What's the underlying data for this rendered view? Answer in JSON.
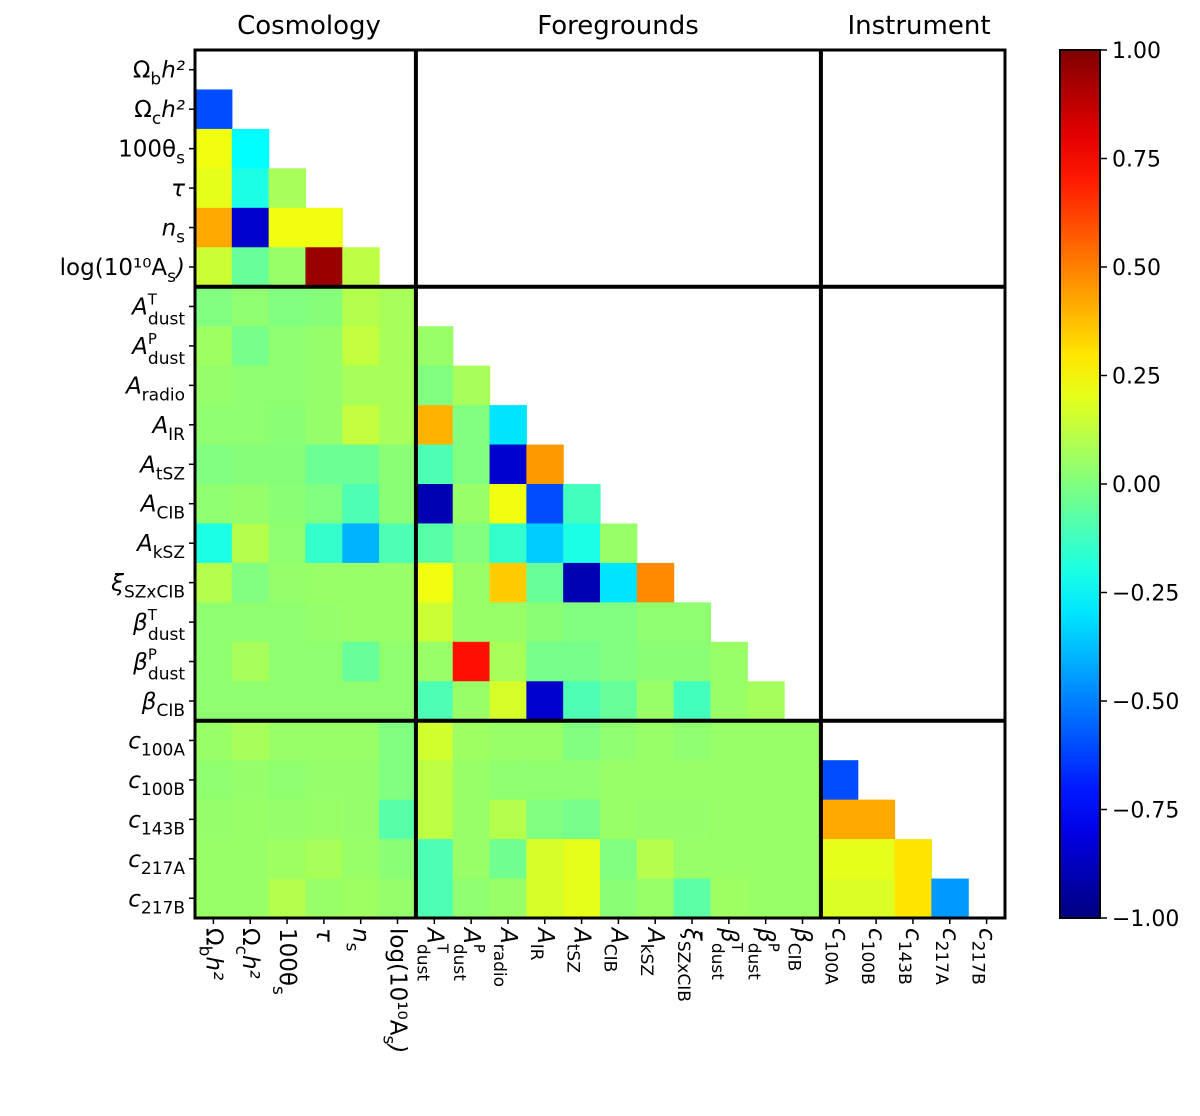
{
  "chart_data": {
    "type": "heatmap",
    "title": "",
    "xlabel": "",
    "ylabel": "",
    "group_titles": [
      "Cosmology",
      "Foregrounds",
      "Instrument"
    ],
    "group_sizes": [
      6,
      11,
      5
    ],
    "labels": [
      {
        "base": "Ω",
        "sub": "b",
        "sup": "",
        "post": "h²",
        "italic_base": false
      },
      {
        "base": "Ω",
        "sub": "c",
        "sup": "",
        "post": "h²",
        "italic_base": false
      },
      {
        "base": "100θ",
        "sub": "s",
        "sup": "",
        "post": "",
        "italic_base": false
      },
      {
        "base": "τ",
        "sub": "",
        "sup": "",
        "post": "",
        "italic_base": true
      },
      {
        "base": "n",
        "sub": "s",
        "sup": "",
        "post": "",
        "italic_base": true
      },
      {
        "base": "log(10¹⁰A",
        "sub": "s",
        "sup": "",
        "post": ")",
        "italic_base": false
      },
      {
        "base": "A",
        "sub": "dust",
        "sup": "T",
        "post": "",
        "italic_base": true
      },
      {
        "base": "A",
        "sub": "dust",
        "sup": "P",
        "post": "",
        "italic_base": true
      },
      {
        "base": "A",
        "sub": "radio",
        "sup": "",
        "post": "",
        "italic_base": true
      },
      {
        "base": "A",
        "sub": "IR",
        "sup": "",
        "post": "",
        "italic_base": true
      },
      {
        "base": "A",
        "sub": "tSZ",
        "sup": "",
        "post": "",
        "italic_base": true
      },
      {
        "base": "A",
        "sub": "CIB",
        "sup": "",
        "post": "",
        "italic_base": true
      },
      {
        "base": "A",
        "sub": "kSZ",
        "sup": "",
        "post": "",
        "italic_base": true
      },
      {
        "base": "ξ",
        "sub": "SZxCIB",
        "sup": "",
        "post": "",
        "italic_base": true
      },
      {
        "base": "β",
        "sub": "dust",
        "sup": "T",
        "post": "",
        "italic_base": true
      },
      {
        "base": "β",
        "sub": "dust",
        "sup": "P",
        "post": "",
        "italic_base": true
      },
      {
        "base": "β",
        "sub": "CIB",
        "sup": "",
        "post": "",
        "italic_base": true
      },
      {
        "base": "c",
        "sub": "100A",
        "sup": "",
        "post": "",
        "italic_base": true
      },
      {
        "base": "c",
        "sub": "100B",
        "sup": "",
        "post": "",
        "italic_base": true
      },
      {
        "base": "c",
        "sub": "143B",
        "sup": "",
        "post": "",
        "italic_base": true
      },
      {
        "base": "c",
        "sub": "217A",
        "sup": "",
        "post": "",
        "italic_base": true
      },
      {
        "base": "c",
        "sub": "217B",
        "sup": "",
        "post": "",
        "italic_base": true
      }
    ],
    "lower_triangle_rows": [
      [],
      [
        -0.6
      ],
      [
        0.22,
        -0.25
      ],
      [
        0.2,
        -0.2,
        0.08
      ],
      [
        0.42,
        -0.85,
        0.22,
        0.22
      ],
      [
        0.15,
        -0.05,
        0.05,
        0.95,
        0.12
      ],
      [
        0.0,
        0.03,
        0.0,
        0.01,
        0.1,
        0.08
      ],
      [
        0.06,
        -0.02,
        0.03,
        0.04,
        0.13,
        0.08,
        0.05
      ],
      [
        0.04,
        0.03,
        0.03,
        0.04,
        0.08,
        0.08,
        0.0,
        0.08
      ],
      [
        0.03,
        0.03,
        0.02,
        0.04,
        0.13,
        0.08,
        0.4,
        0.0,
        -0.3
      ],
      [
        0.0,
        0.01,
        0.01,
        -0.04,
        -0.04,
        0.02,
        -0.1,
        0.0,
        -0.85,
        0.45
      ],
      [
        0.03,
        0.04,
        0.02,
        0.0,
        -0.1,
        0.02,
        -0.9,
        0.05,
        0.22,
        -0.6,
        -0.12
      ],
      [
        -0.2,
        0.1,
        0.03,
        -0.15,
        -0.4,
        -0.1,
        -0.08,
        0.0,
        -0.15,
        -0.35,
        -0.2,
        0.05
      ],
      [
        0.1,
        0.0,
        0.04,
        0.05,
        0.05,
        0.05,
        0.22,
        0.05,
        0.35,
        -0.05,
        -0.9,
        -0.3,
        0.48
      ],
      [
        0.03,
        0.03,
        0.03,
        0.04,
        0.05,
        0.05,
        0.15,
        0.05,
        0.05,
        0.02,
        0.0,
        0.0,
        0.03,
        0.03
      ],
      [
        0.03,
        0.08,
        0.03,
        0.03,
        -0.05,
        0.03,
        0.05,
        0.72,
        0.08,
        -0.02,
        -0.02,
        0.0,
        0.02,
        0.02,
        0.05
      ],
      [
        0.03,
        0.03,
        0.03,
        0.03,
        0.03,
        0.03,
        -0.1,
        0.05,
        0.17,
        -0.85,
        -0.1,
        -0.05,
        0.05,
        -0.12,
        0.05,
        0.07
      ],
      [
        0.05,
        0.08,
        0.05,
        0.05,
        0.05,
        0.0,
        0.16,
        0.06,
        0.05,
        0.05,
        0.0,
        0.03,
        0.05,
        0.03,
        0.05,
        0.05,
        0.05
      ],
      [
        0.03,
        0.04,
        0.03,
        0.04,
        0.04,
        0.0,
        0.12,
        0.05,
        0.03,
        0.03,
        0.03,
        0.05,
        0.05,
        0.05,
        0.05,
        0.05,
        0.05,
        -0.6
      ],
      [
        0.04,
        0.05,
        0.04,
        0.05,
        0.04,
        -0.08,
        0.12,
        0.05,
        0.1,
        0.0,
        -0.02,
        0.05,
        0.04,
        0.04,
        0.05,
        0.05,
        0.05,
        0.42,
        0.42
      ],
      [
        0.05,
        0.05,
        0.06,
        0.08,
        0.05,
        0.02,
        -0.1,
        0.05,
        -0.03,
        0.17,
        0.2,
        0.0,
        0.1,
        0.05,
        0.05,
        0.05,
        0.05,
        0.2,
        0.2,
        0.3
      ],
      [
        0.05,
        0.05,
        0.1,
        0.05,
        0.06,
        0.04,
        -0.1,
        0.03,
        0.05,
        0.17,
        0.2,
        0.02,
        0.05,
        -0.07,
        0.06,
        0.05,
        0.05,
        0.18,
        0.18,
        0.3,
        -0.45
      ]
    ],
    "colorbar": {
      "colormap": "jet",
      "range": [
        -1.0,
        1.0
      ],
      "tick_values": [
        1.0,
        0.75,
        0.5,
        0.25,
        0.0,
        -0.25,
        -0.5,
        -0.75,
        -1.0
      ],
      "tick_labels": [
        "1.00",
        "0.75",
        "0.50",
        "0.25",
        "0.00",
        "−0.25",
        "−0.50",
        "−0.75",
        "−1.00"
      ]
    }
  }
}
